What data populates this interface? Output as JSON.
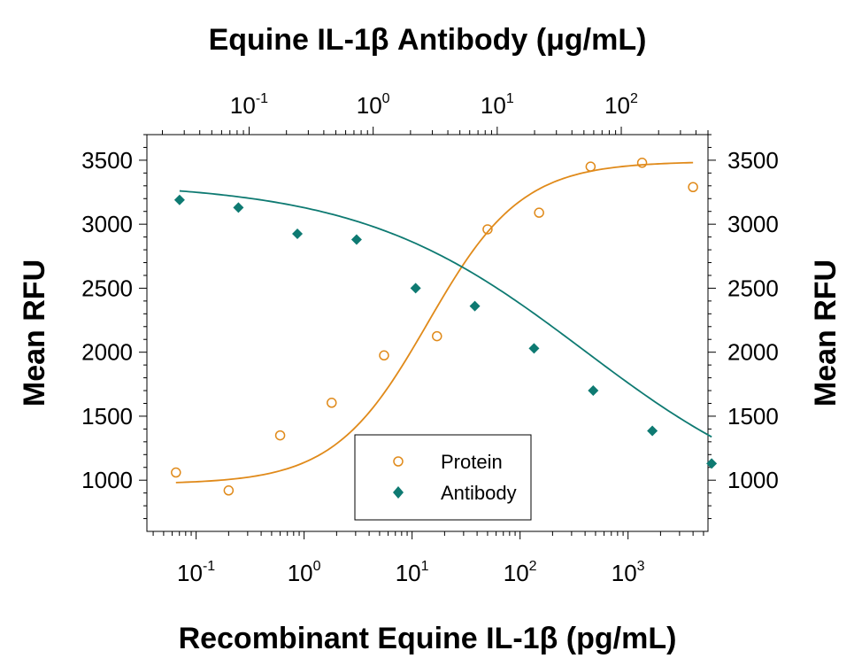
{
  "chart_data": {
    "type": "scatter",
    "title": "Equine IL-1β Antibody (μg/mL)",
    "xlabel": "Recombinant Equine IL-1β (pg/mL)",
    "ylabel": "Mean RFU",
    "y2label": "Mean RFU",
    "x_scale": "log",
    "x_range": [
      0.035,
      5500
    ],
    "x_ticks": [
      {
        "value": 0.1,
        "base": "10",
        "exp": "-1"
      },
      {
        "value": 1,
        "base": "10",
        "exp": "0"
      },
      {
        "value": 10,
        "base": "10",
        "exp": "1"
      },
      {
        "value": 100,
        "base": "10",
        "exp": "2"
      },
      {
        "value": 1000,
        "base": "10",
        "exp": "3"
      }
    ],
    "x2_scale": "log",
    "x2_range": [
      0.015,
      500
    ],
    "x2_ticks": [
      {
        "value": 0.1,
        "base": "10",
        "exp": "-1"
      },
      {
        "value": 1,
        "base": "10",
        "exp": "0"
      },
      {
        "value": 10,
        "base": "10",
        "exp": "1"
      },
      {
        "value": 100,
        "base": "10",
        "exp": "2"
      }
    ],
    "y_range": [
      600,
      3700
    ],
    "y_ticks": [
      "1000",
      "1500",
      "2000",
      "2500",
      "3000",
      "3500"
    ],
    "grid": false,
    "legend": {
      "position": "bottom-center",
      "entries": [
        "Protein",
        "Antibody"
      ]
    },
    "series": [
      {
        "name": "Protein",
        "axis": "bottom",
        "marker": "open-circle",
        "color": "#E08A1A",
        "x": [
          0.065,
          0.2,
          0.6,
          1.8,
          5.5,
          17,
          50,
          150,
          450,
          1350,
          4000
        ],
        "y": [
          1060,
          920,
          1350,
          1605,
          1975,
          2125,
          2960,
          3090,
          3450,
          3480,
          3290
        ],
        "fit": {
          "model": "4PL",
          "bottom": 970,
          "top": 3490,
          "ec50": 14,
          "hill": 1.0
        }
      },
      {
        "name": "Antibody",
        "axis": "top",
        "marker": "filled-diamond",
        "color": "#0E7A72",
        "x": [
          0.0275,
          0.082,
          0.245,
          0.735,
          2.2,
          6.6,
          19.8,
          59.4,
          178,
          535
        ],
        "y": [
          3190,
          3130,
          2925,
          2880,
          2500,
          2360,
          2030,
          1700,
          1385,
          1130
        ],
        "fit": {
          "model": "4PL",
          "bottom": 700,
          "top": 3330,
          "ec50": 50,
          "hill": -0.48
        }
      }
    ]
  }
}
